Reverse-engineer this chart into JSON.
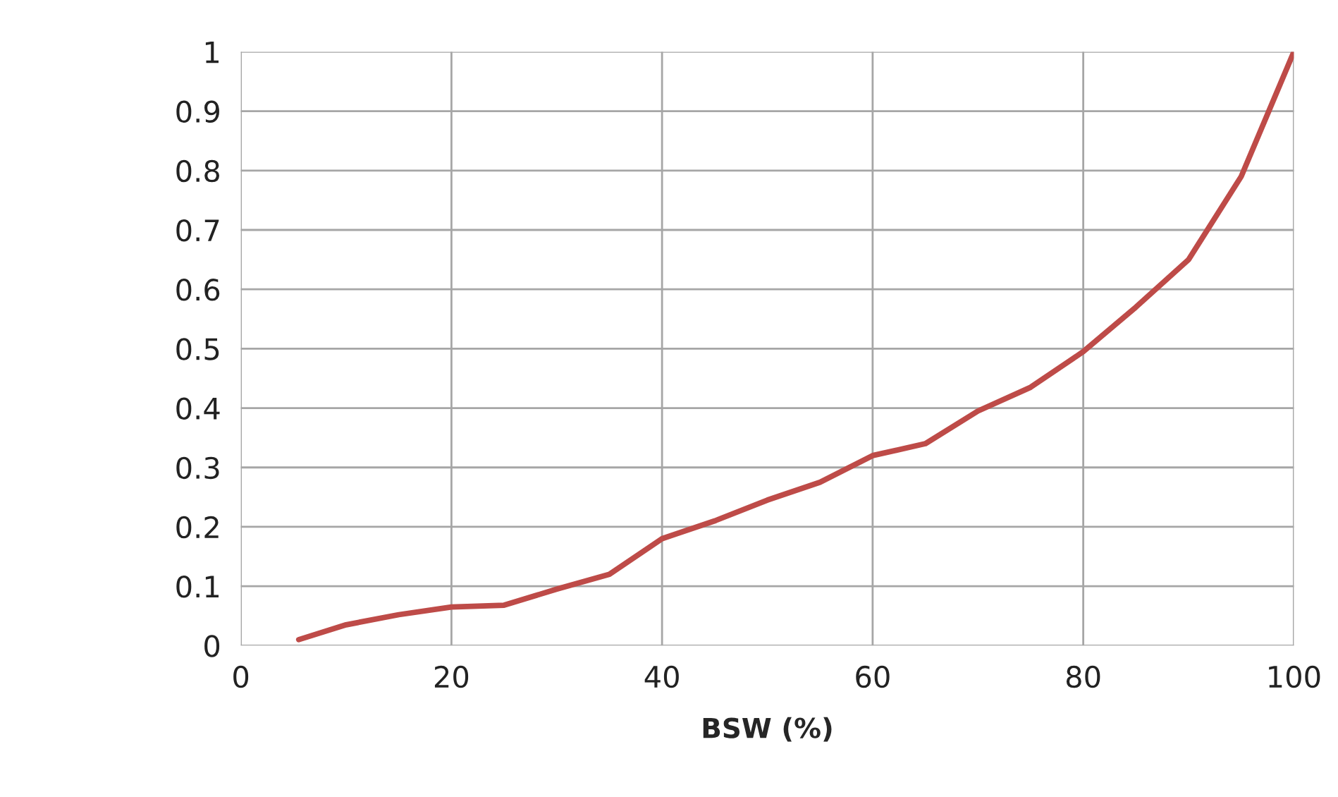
{
  "chart_data": {
    "type": "line",
    "xlabel": "BSW (%)",
    "x": [
      5.5,
      10,
      15,
      20,
      25,
      30,
      35,
      40,
      45,
      50,
      55,
      60,
      65,
      70,
      75,
      80,
      85,
      90,
      95,
      100
    ],
    "series": [
      {
        "color": "#be4b48",
        "values": [
          0.01,
          0.035,
          0.052,
          0.065,
          0.068,
          0.095,
          0.12,
          0.18,
          0.21,
          0.245,
          0.275,
          0.32,
          0.34,
          0.395,
          0.435,
          0.495,
          0.57,
          0.65,
          0.79,
          1.0
        ]
      }
    ],
    "xlim": [
      0,
      100
    ],
    "xticks": [
      0,
      20,
      40,
      60,
      80,
      100
    ],
    "ylim": [
      0,
      1
    ],
    "yticks": [
      0,
      0.1,
      0.2,
      0.3,
      0.4,
      0.5,
      0.6,
      0.7,
      0.8,
      0.9,
      1
    ],
    "grid": true,
    "marker": "none",
    "line_style": "solid"
  }
}
